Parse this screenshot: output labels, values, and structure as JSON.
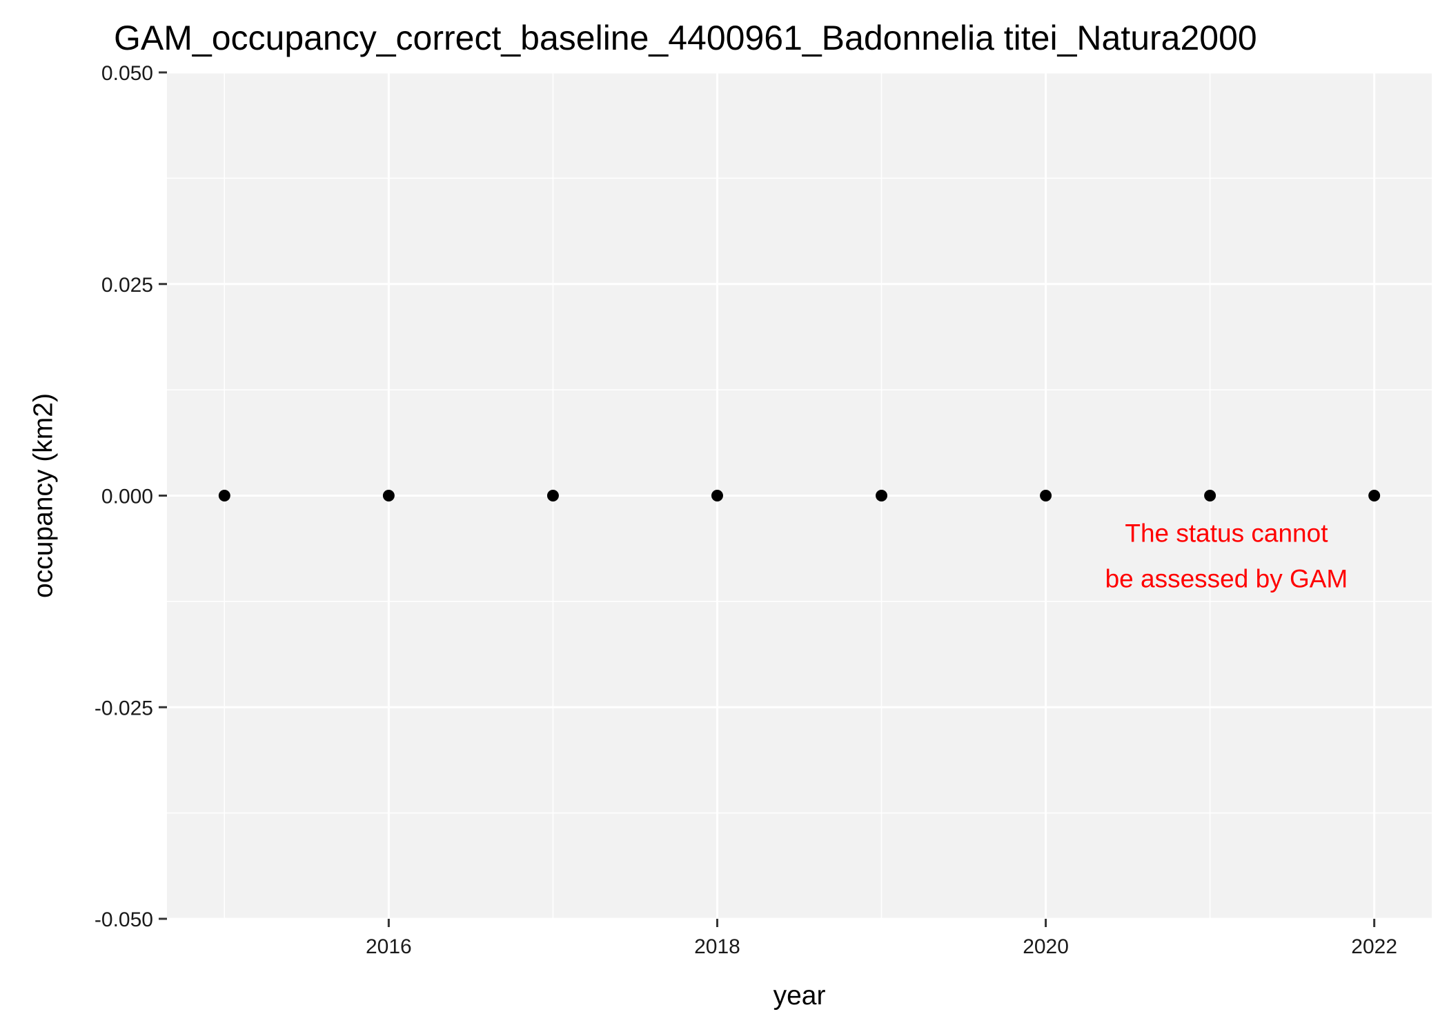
{
  "chart_data": {
    "type": "scatter",
    "title": "GAM_occupancy_correct_baseline_4400961_Badonnelia titei_Natura2000",
    "xlabel": "year",
    "ylabel": "occupancy (km2)",
    "xlim": [
      2014.65,
      2022.35
    ],
    "ylim": [
      -0.05,
      0.05
    ],
    "x_ticks": [
      2016,
      2018,
      2020,
      2022
    ],
    "y_ticks": [
      0.05,
      0.025,
      0.0,
      -0.025,
      -0.05
    ],
    "x_tick_labels": [
      "2016",
      "2018",
      "2020",
      "2022"
    ],
    "y_tick_labels": [
      "0.050",
      "0.025",
      "0.000",
      "-0.025",
      "-0.050"
    ],
    "grid": true,
    "panel_color": "#f2f2f2",
    "point_color": "#000000",
    "points": [
      {
        "x": 2015,
        "y": 0
      },
      {
        "x": 2016,
        "y": 0
      },
      {
        "x": 2017,
        "y": 0
      },
      {
        "x": 2018,
        "y": 0
      },
      {
        "x": 2019,
        "y": 0
      },
      {
        "x": 2020,
        "y": 0
      },
      {
        "x": 2021,
        "y": 0
      },
      {
        "x": 2022,
        "y": 0
      }
    ],
    "annotation": {
      "lines": [
        "The status cannot",
        "be assessed by GAM"
      ],
      "x": 2021.1,
      "y": -0.003,
      "color": "#ff0000"
    }
  }
}
